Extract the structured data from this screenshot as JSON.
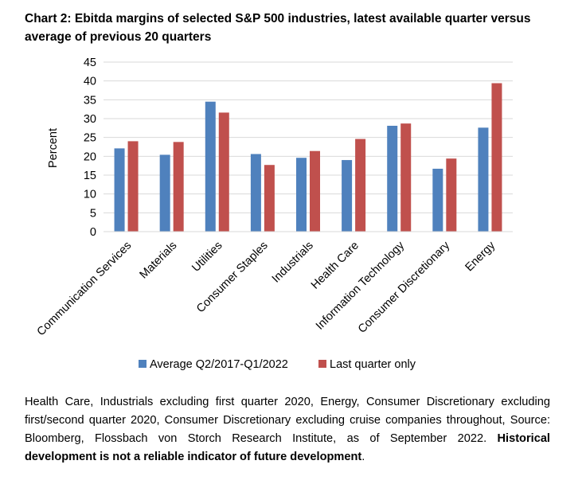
{
  "title": "Chart 2: Ebitda margins of selected S&P 500 industries, latest available quarter versus average of previous 20 quarters",
  "footnote": {
    "text": "Health Care, Industrials excluding first quarter 2020, Energy, Consumer Discretionary excluding first/second quarter 2020, Consumer Discretionary excluding cruise companies throughout, Source: Bloomberg, Flossbach von Storch Research Institute, as of September 2022. ",
    "bold": "Historical development is not a reliable indicator of future development"
  },
  "colors": {
    "series1": "#4F81BD",
    "series2": "#C0504D",
    "grid": "#D9D9D9"
  },
  "chart_data": {
    "type": "bar",
    "ylabel": "Percent",
    "ylim": [
      0,
      45
    ],
    "yticks": [
      0,
      5,
      10,
      15,
      20,
      25,
      30,
      35,
      40,
      45
    ],
    "grid": true,
    "legend_position": "bottom",
    "categories": [
      "Communication Services",
      "Materials",
      "Utilities",
      "Consumer Staples",
      "Industrials",
      "Health Care",
      "Information Technology",
      "Consumer Discretionary",
      "Energy"
    ],
    "series": [
      {
        "name": "Average Q2/2017-Q1/2022",
        "values": [
          22.1,
          20.4,
          34.5,
          20.6,
          19.6,
          19.0,
          28.1,
          16.7,
          27.6
        ]
      },
      {
        "name": "Last quarter only",
        "values": [
          24.0,
          23.8,
          31.6,
          17.7,
          21.4,
          24.6,
          28.7,
          19.4,
          39.4
        ]
      }
    ]
  }
}
